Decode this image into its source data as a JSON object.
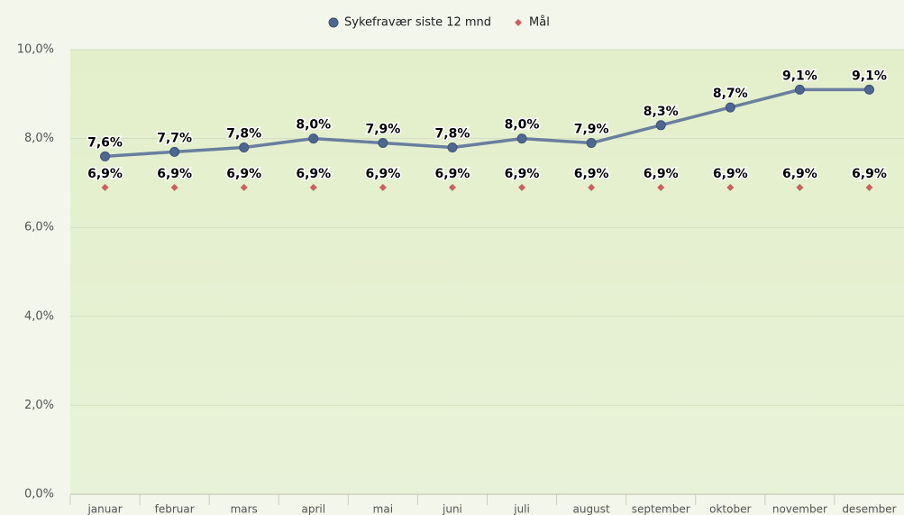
{
  "chart_data": {
    "type": "line",
    "categories": [
      "januar",
      "februar",
      "mars",
      "april",
      "mai",
      "juni",
      "juli",
      "august",
      "september",
      "oktober",
      "november",
      "desember"
    ],
    "series": [
      {
        "name": "Sykefravær siste 12 mnd",
        "color": "#4f6790",
        "marker": "circle",
        "show_line": true,
        "values": [
          7.6,
          7.7,
          7.8,
          8.0,
          7.9,
          7.8,
          8.0,
          7.9,
          8.3,
          8.7,
          9.1,
          9.1
        ],
        "value_labels": [
          "7,6%",
          "7,7%",
          "7,8%",
          "8,0%",
          "7,9%",
          "7,8%",
          "8,0%",
          "7,9%",
          "8,3%",
          "8,7%",
          "9,1%",
          "9,1%"
        ]
      },
      {
        "name": "Mål",
        "color": "#cc5f5f",
        "marker": "diamond",
        "show_line": false,
        "values": [
          6.9,
          6.9,
          6.9,
          6.9,
          6.9,
          6.9,
          6.9,
          6.9,
          6.9,
          6.9,
          6.9,
          6.9
        ],
        "value_labels": [
          "6,9%",
          "6,9%",
          "6,9%",
          "6,9%",
          "6,9%",
          "6,9%",
          "6,9%",
          "6,9%",
          "6,9%",
          "6,9%",
          "6,9%",
          "6,9%"
        ]
      }
    ],
    "ylim": [
      0,
      10
    ],
    "yticks": [
      {
        "value": 0,
        "label": "0,0%"
      },
      {
        "value": 2,
        "label": "2,0%"
      },
      {
        "value": 4,
        "label": "4,0%"
      },
      {
        "value": 6,
        "label": "6,0%"
      },
      {
        "value": 8,
        "label": "8,0%"
      },
      {
        "value": 10,
        "label": "10,0%"
      }
    ],
    "grid": true,
    "legend": "top"
  }
}
